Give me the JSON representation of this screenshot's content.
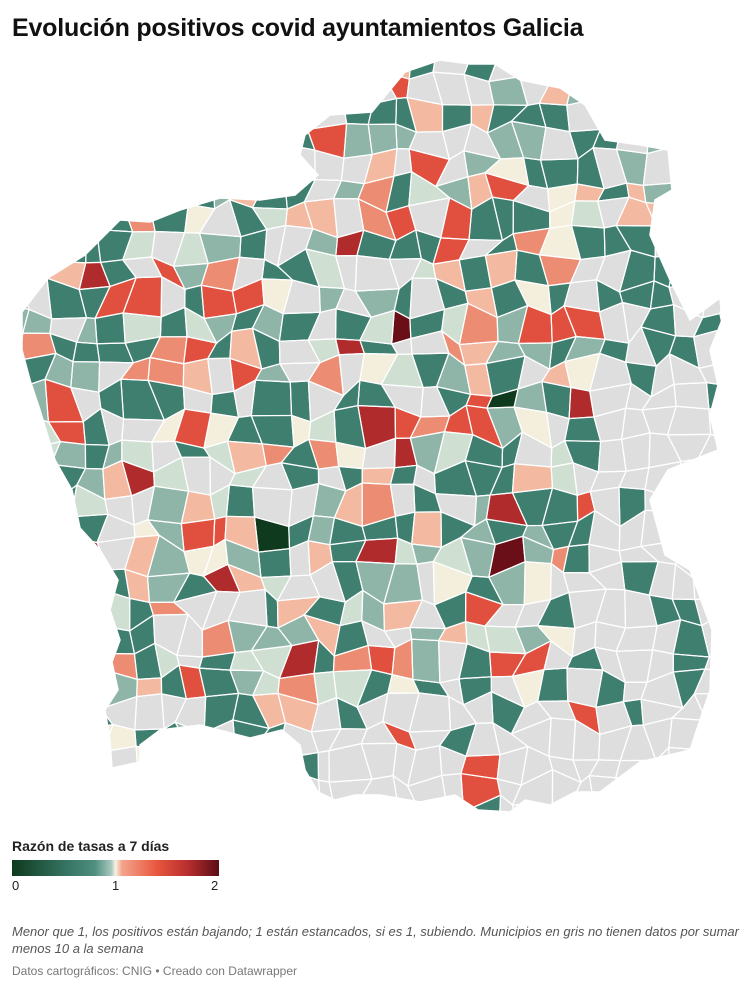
{
  "title": "Evolución positivos covid ayuntamientos Galicia",
  "legend": {
    "title": "Razón de tasas a 7 días",
    "tick_min": "0",
    "tick_mid": "1",
    "tick_max": "2",
    "scale_min": 0,
    "scale_mid": 1,
    "scale_max": 2
  },
  "note": "Menor que 1, los positivos están bajando; 1 están estancados, si es 1, subiendo. Municipios en gris no tienen datos por sumar menos 10 a la semana",
  "source": "Datos cartográficos: CNIG • Creado con Datawrapper",
  "colors": {
    "no_data": "#dedede",
    "border": "#ffffff",
    "dark_green": "#0f3a1e",
    "teal": "#3f7f70",
    "light_teal": "#8fb5a8",
    "pale_green": "#cfe0d3",
    "cream": "#f3efdc",
    "peach": "#f4b9a1",
    "salmon": "#ec8c72",
    "red": "#e1503e",
    "dark_red": "#b02b2b",
    "maroon": "#6a0f18"
  }
}
